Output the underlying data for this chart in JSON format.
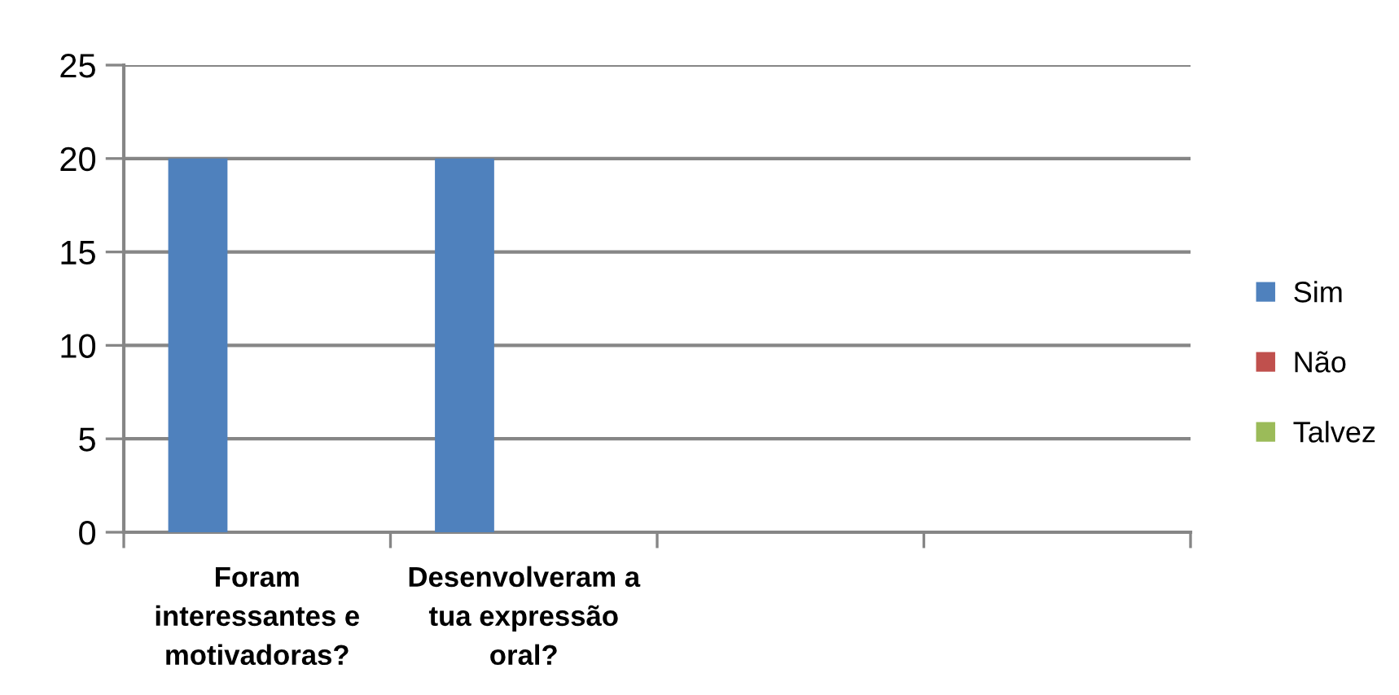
{
  "chart_data": {
    "type": "bar",
    "categories": [
      "Foram interessantes e motivadoras?",
      "Desenvolveram a tua expressão oral?",
      null,
      null
    ],
    "series": [
      {
        "name": "Sim",
        "color": "#4f81bd",
        "values": [
          20,
          20,
          null,
          null
        ]
      },
      {
        "name": "Não",
        "color": "#c0504d",
        "values": [
          0,
          0,
          null,
          null
        ]
      },
      {
        "name": "Talvez",
        "color": "#9bbb59",
        "values": [
          0,
          0,
          null,
          null
        ]
      }
    ],
    "ylim": [
      0,
      25
    ],
    "yticks": [
      0,
      5,
      10,
      15,
      20,
      25
    ],
    "grid": "y",
    "legend": "right"
  }
}
